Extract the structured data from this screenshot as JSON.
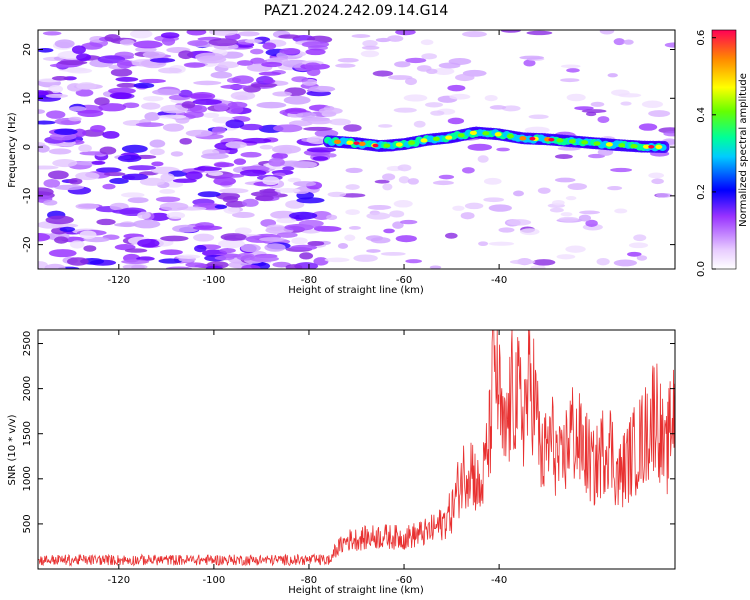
{
  "title": "PAZ1.2024.242.09.14.G14",
  "chart_data": [
    {
      "type": "heatmap",
      "xlabel": "Height of straight line (km)",
      "ylabel": "Frequency (Hz)",
      "xlim": [
        -137,
        -3
      ],
      "ylim": [
        -25,
        24
      ],
      "xticks": [
        -120,
        -100,
        -80,
        -60,
        -40
      ],
      "yticks": [
        -20,
        -10,
        0,
        10,
        20
      ],
      "colorbar": {
        "label": "Normalized spectral amplitude",
        "range": [
          0.0,
          0.62
        ],
        "ticks": [
          "0.0",
          "0.2",
          "0.4",
          "0.6"
        ]
      },
      "features": {
        "noise_region_x": [
          -137,
          -76
        ],
        "signal_band": [
          [
            -76,
            1.2
          ],
          [
            -70,
            0.8
          ],
          [
            -65,
            0.2
          ],
          [
            -60,
            0.6
          ],
          [
            -55,
            1.5
          ],
          [
            -50,
            2.0
          ],
          [
            -45,
            3.0
          ],
          [
            -40,
            2.6
          ],
          [
            -35,
            1.8
          ],
          [
            -30,
            1.6
          ],
          [
            -25,
            1.2
          ],
          [
            -20,
            0.8
          ],
          [
            -15,
            0.4
          ],
          [
            -10,
            0.1
          ],
          [
            -5,
            0.0
          ]
        ]
      }
    },
    {
      "type": "line",
      "xlabel": "Height of straight line (km)",
      "ylabel": "SNR (10 * v/v)",
      "xlim": [
        -137,
        -3
      ],
      "ylim": [
        0,
        2650
      ],
      "xticks": [
        -120,
        -100,
        -80,
        -60,
        -40
      ],
      "yticks": [
        500,
        1000,
        1500,
        2000,
        2500
      ],
      "series_color": "#e83030",
      "envelope": [
        {
          "x": -137,
          "y": 100
        },
        {
          "x": -120,
          "y": 110
        },
        {
          "x": -100,
          "y": 110
        },
        {
          "x": -80,
          "y": 120
        },
        {
          "x": -76,
          "y": 150
        },
        {
          "x": -72,
          "y": 350
        },
        {
          "x": -65,
          "y": 400
        },
        {
          "x": -60,
          "y": 380
        },
        {
          "x": -55,
          "y": 450
        },
        {
          "x": -52,
          "y": 550
        },
        {
          "x": -50,
          "y": 700
        },
        {
          "x": -48,
          "y": 1100
        },
        {
          "x": -46,
          "y": 1300
        },
        {
          "x": -44,
          "y": 900
        },
        {
          "x": -42,
          "y": 1600
        },
        {
          "x": -41,
          "y": 2650
        },
        {
          "x": -39,
          "y": 1500
        },
        {
          "x": -37,
          "y": 2200
        },
        {
          "x": -35,
          "y": 1900
        },
        {
          "x": -33,
          "y": 2300
        },
        {
          "x": -31,
          "y": 1300
        },
        {
          "x": -29,
          "y": 1600
        },
        {
          "x": -27,
          "y": 1200
        },
        {
          "x": -25,
          "y": 1700
        },
        {
          "x": -22,
          "y": 1450
        },
        {
          "x": -20,
          "y": 1200
        },
        {
          "x": -17,
          "y": 1600
        },
        {
          "x": -15,
          "y": 1100
        },
        {
          "x": -12,
          "y": 1400
        },
        {
          "x": -9,
          "y": 1650
        },
        {
          "x": -7,
          "y": 2000
        },
        {
          "x": -5,
          "y": 1300
        },
        {
          "x": -3,
          "y": 2100
        }
      ]
    }
  ]
}
